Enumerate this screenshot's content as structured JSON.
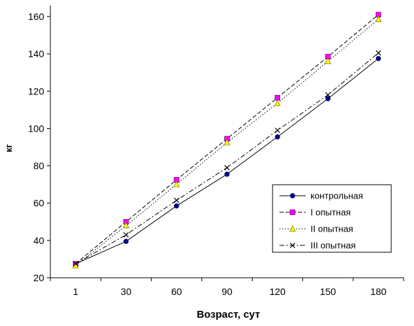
{
  "chart_data": {
    "type": "line",
    "categories": [
      "1",
      "30",
      "60",
      "90",
      "120",
      "150",
      "180"
    ],
    "xlabel": "Возраст, сут",
    "ylabel": "кг",
    "ylim": [
      20,
      160
    ],
    "yticks": [
      20,
      40,
      60,
      80,
      100,
      120,
      140,
      160
    ],
    "grid": false,
    "legend_position": "right",
    "series": [
      {
        "name": "контрольная",
        "values": [
          27.5,
          39.5,
          58.5,
          75.5,
          95.5,
          116.0,
          137.5
        ],
        "marker": "circle",
        "line_style": "solid",
        "marker_color": "#000080"
      },
      {
        "name": "I опытная",
        "values": [
          27.5,
          50.0,
          72.5,
          94.5,
          116.5,
          138.5,
          161.0
        ],
        "marker": "square",
        "line_style": "dashed",
        "marker_color": "#ff00ff"
      },
      {
        "name": "II опытная",
        "values": [
          26.5,
          48.0,
          70.0,
          92.5,
          113.5,
          136.0,
          158.5
        ],
        "marker": "triangle",
        "line_style": "dotted",
        "marker_color": "#ffff00"
      },
      {
        "name": "III опытная",
        "values": [
          27.5,
          43.0,
          61.5,
          79.0,
          99.0,
          118.0,
          140.5
        ],
        "marker": "x",
        "line_style": "dash-dot",
        "marker_color": "#000000"
      }
    ]
  }
}
